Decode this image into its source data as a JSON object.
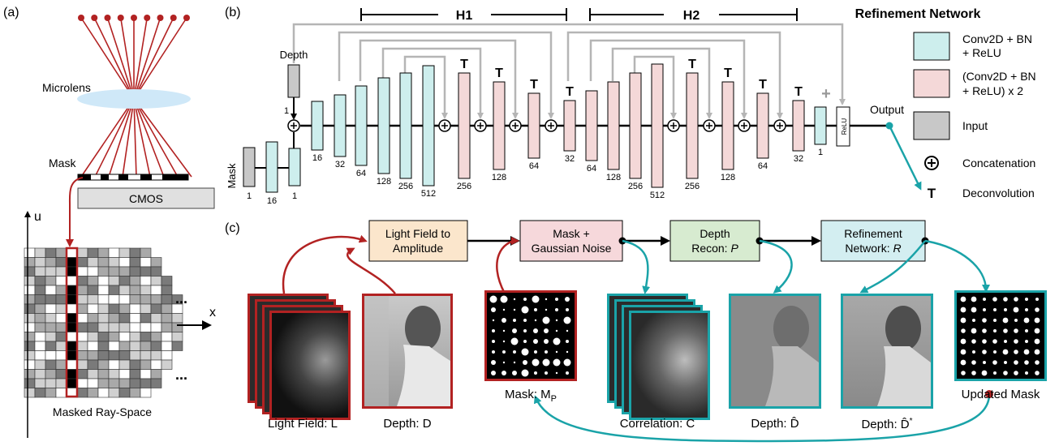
{
  "panel_labels": {
    "a": "(a)",
    "b": "(b)",
    "c": "(c)"
  },
  "panel_a": {
    "microlens": "Microlens",
    "mask": "Mask",
    "cmos": "CMOS",
    "u": "u",
    "x": "x",
    "ellipsis": "...",
    "raygrid_caption": "Masked Ray-Space"
  },
  "panel_b": {
    "h1": "H1",
    "h2": "H2",
    "title": "Refinement Network",
    "depth_label": "Depth",
    "mask_label": "Mask",
    "output_label": "Output",
    "relu_label": "ReLU",
    "t_mark": "T",
    "plus_mark": "+",
    "channel_labels": {
      "depth_in": "1",
      "mask_in": "1",
      "mask_conv": "16",
      "merge": "1",
      "enc": [
        "16",
        "32",
        "64",
        "128",
        "256",
        "512"
      ],
      "dec1": [
        "256",
        "128",
        "64",
        "32"
      ],
      "enc2": [
        "64",
        "128",
        "256",
        "512"
      ],
      "dec2": [
        "256",
        "128",
        "64",
        "32"
      ],
      "final": "1"
    }
  },
  "legend": {
    "conv": "Conv2D + BN + ReLU",
    "conv_line1": "Conv2D + BN",
    "conv_line2": "+ ReLU",
    "conv2_line1": "(Conv2D + BN",
    "conv2_line2": "+ ReLU) x 2",
    "input": "Input",
    "concat": "Concatenation",
    "deconv": "Deconvolution",
    "t_symbol": "T",
    "plus_symbol": "+"
  },
  "panel_c": {
    "box1_line1": "Light Field to",
    "box1_line2": "Amplitude",
    "box2_line1": "Mask +",
    "box2_line2": "Gaussian Noise",
    "box3_line1": "Depth",
    "box3_line2": "Recon: ",
    "box3_sym": "P",
    "box4_line1": "Refinement",
    "box4_line2": "Network: ",
    "box4_sym": "R",
    "captions": {
      "lightfield": "Light Field: L",
      "depth": "Depth: D",
      "mask": "Mask: M",
      "mask_sub": "P",
      "correlation": "Correlation: C",
      "depth_hat": "Depth: D̂",
      "depth_hat_star": "Depth: D̂",
      "depth_star": "*",
      "updated": "Updated Mask"
    }
  },
  "colors": {
    "red": "#b22222",
    "teal": "#1aa3a8",
    "conv_fill": "#cdeeed",
    "conv2_fill": "#f4d8d8",
    "input_fill": "#c8c8c8",
    "box1": "#fbe6cc",
    "box2": "#f6d8db",
    "box3": "#d7ebd0",
    "box4": "#d3eef1",
    "skip": "#b5b5b5"
  }
}
